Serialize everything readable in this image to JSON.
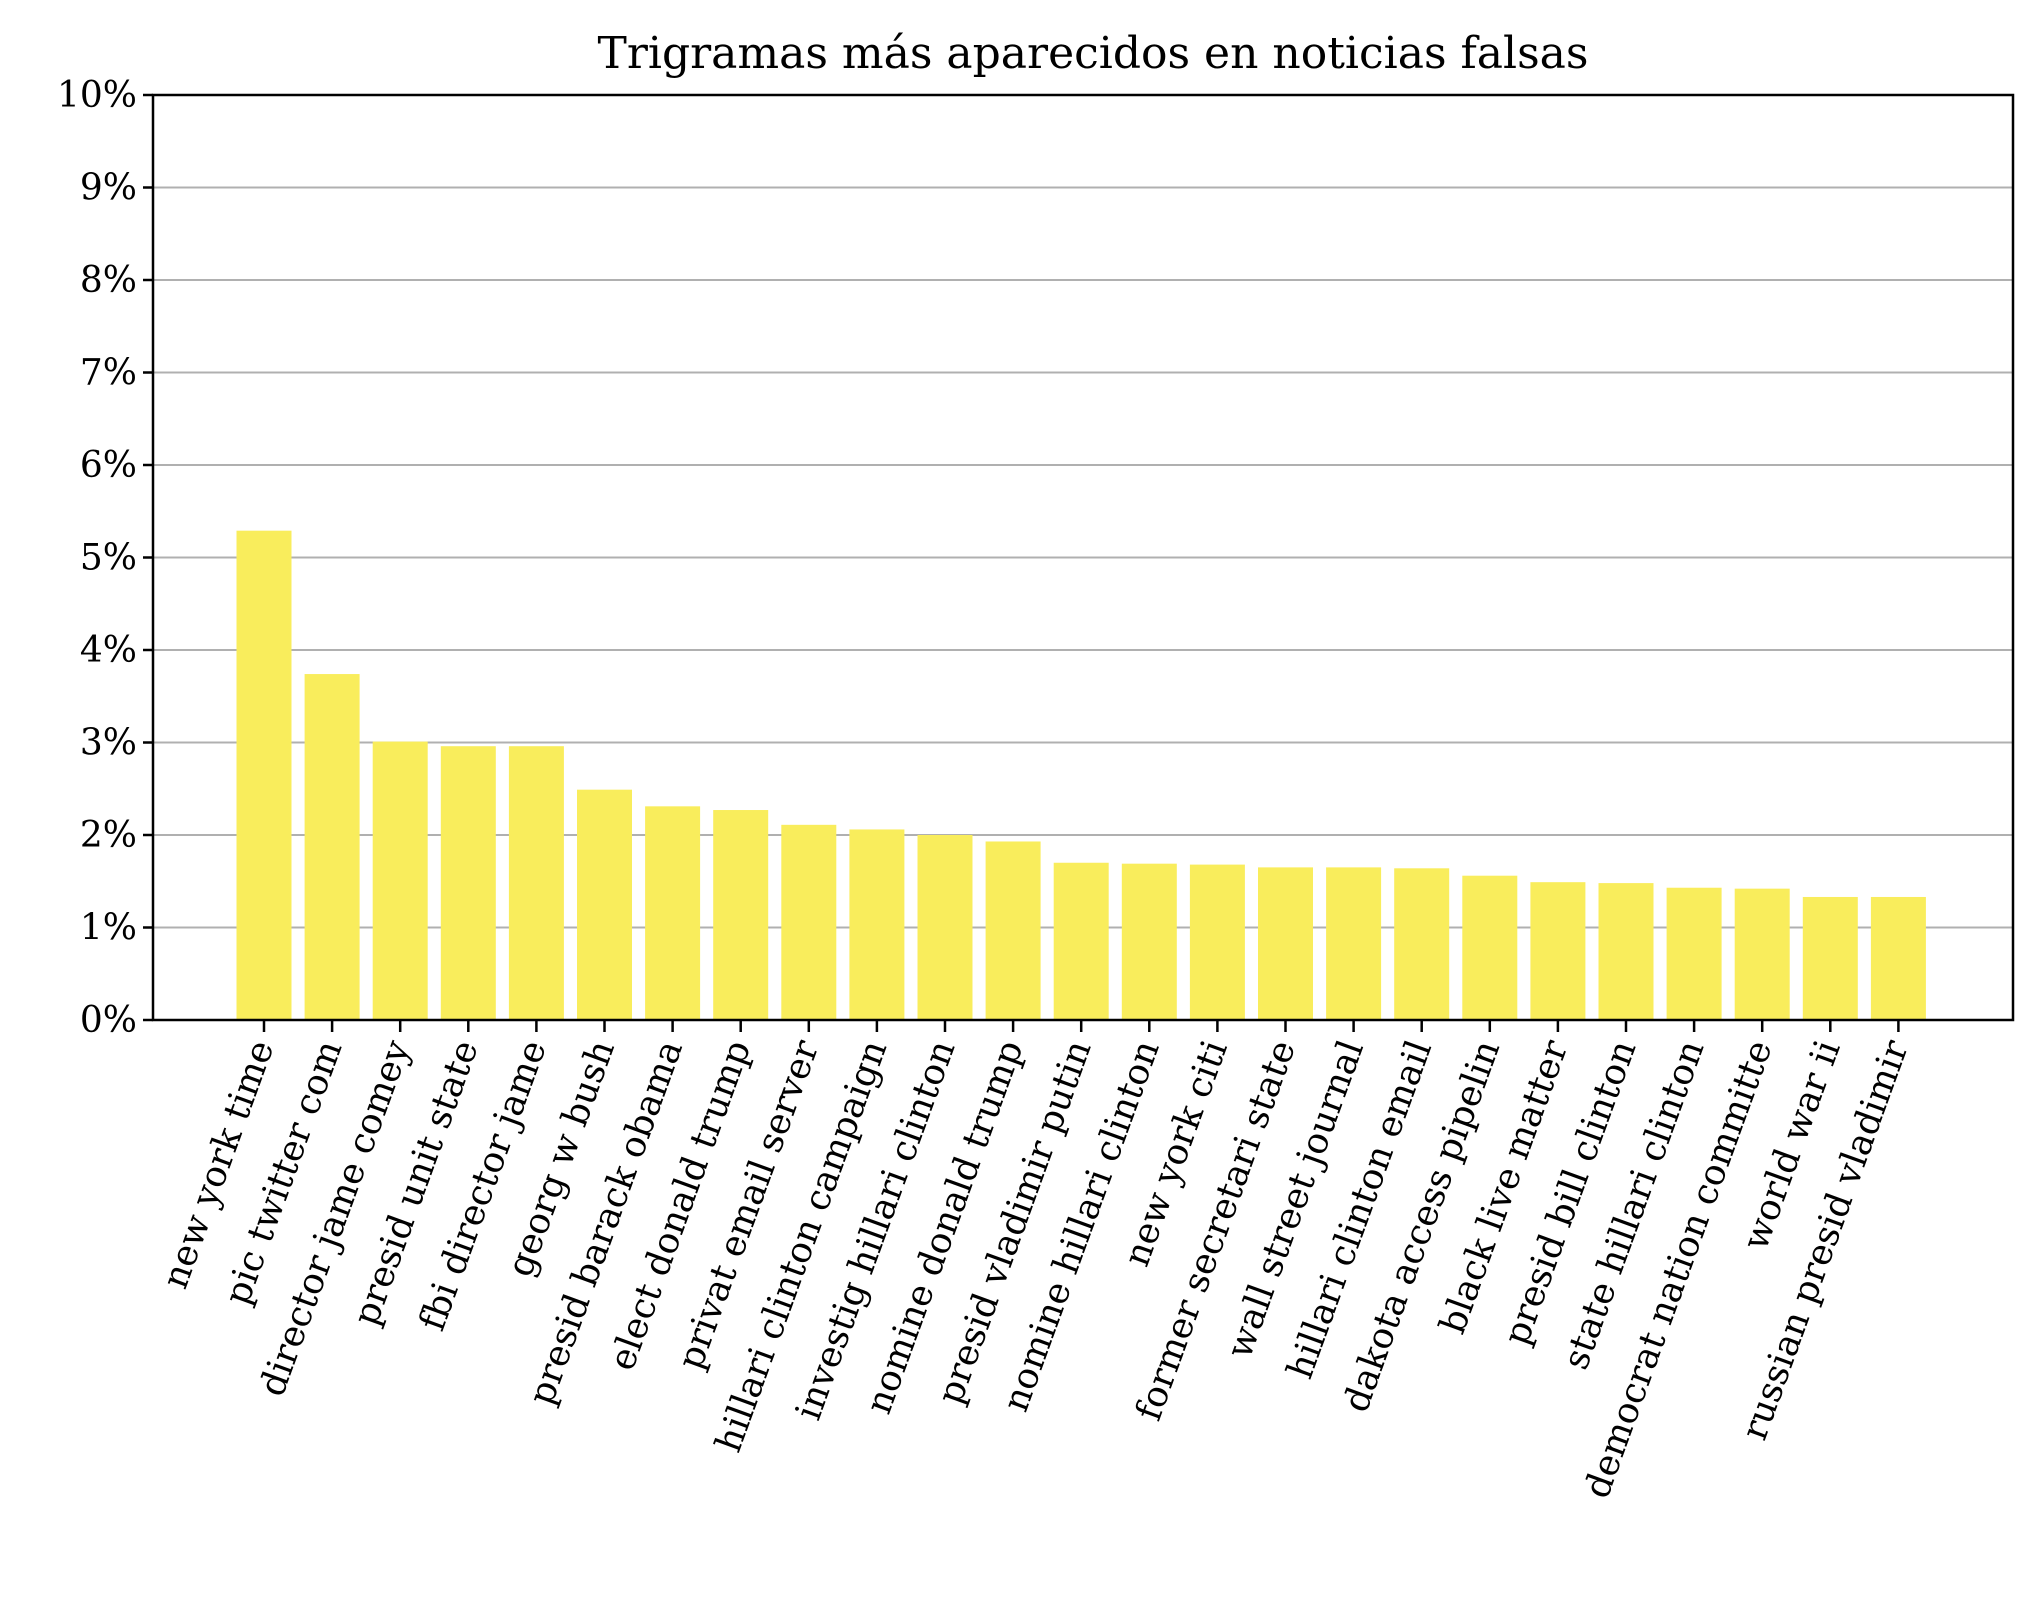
{
  "chart_data": {
    "type": "bar",
    "title": "Trigramas más aparecidos en noticias falsas",
    "xlabel": "",
    "ylabel": "",
    "ylim": [
      0,
      10
    ],
    "y_ticks": [
      0,
      1,
      2,
      3,
      4,
      5,
      6,
      7,
      8,
      9,
      10
    ],
    "y_tick_suffix": "%",
    "grid": "horizontal",
    "bar_color": "#f9ed5c",
    "categories": [
      "new york time",
      "pic twitter com",
      "director jame comey",
      "presid unit state",
      "fbi director jame",
      "georg w bush",
      "presid barack obama",
      "elect donald trump",
      "privat email server",
      "hillari clinton campaign",
      "investig hillari clinton",
      "nomine donald trump",
      "presid vladimir putin",
      "nomine hillari clinton",
      "new york citi",
      "former secretari state",
      "wall street journal",
      "hillari clinton email",
      "dakota access pipelin",
      "black live matter",
      "presid bill clinton",
      "state hillari clinton",
      "democrat nation committe",
      "world war ii",
      "russian presid vladimir"
    ],
    "values": [
      5.29,
      3.74,
      3.01,
      2.96,
      2.96,
      2.49,
      2.31,
      2.27,
      2.11,
      2.06,
      2.0,
      1.93,
      1.7,
      1.69,
      1.68,
      1.65,
      1.65,
      1.64,
      1.56,
      1.49,
      1.48,
      1.43,
      1.42,
      1.33,
      1.33
    ]
  }
}
